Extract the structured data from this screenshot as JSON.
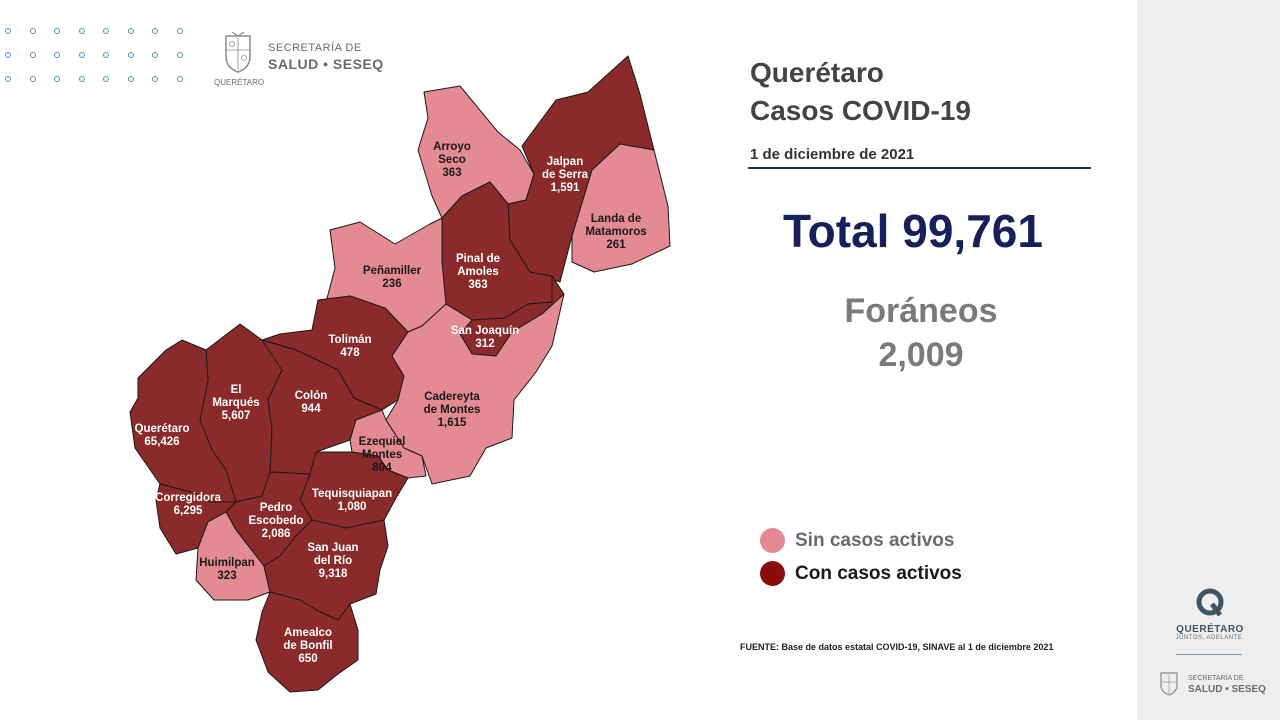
{
  "header": {
    "logo_line1": "SECRETARÍA DE",
    "logo_line2": "SALUD • SESEQ",
    "logo_small": "QUERÉTARO"
  },
  "title": {
    "line1": "Querétaro",
    "line2": "Casos COVID-19",
    "date": "1 de diciembre de 2021"
  },
  "total": "Total 99,761",
  "foraneos": {
    "label": "Foráneos",
    "value": "2,009"
  },
  "legend": {
    "inactive_label": "Sin casos activos",
    "active_label": "Con casos activos"
  },
  "colors": {
    "inactive": "#e38a93",
    "active": "#8b2a2a",
    "legend_active": "#8b0b0b",
    "total_text": "#16205a"
  },
  "municipalities": [
    {
      "id": "arroyo-seco",
      "lines": [
        "Arroyo",
        "Seco"
      ],
      "cases": "363",
      "active": false
    },
    {
      "id": "jalpan-de-serra",
      "lines": [
        "Jalpan",
        "de Serra"
      ],
      "cases": "1,591",
      "active": true
    },
    {
      "id": "landa-de-matamoros",
      "lines": [
        "Landa de",
        "Matamoros"
      ],
      "cases": "261",
      "active": false
    },
    {
      "id": "pinal-de-amoles",
      "lines": [
        "Pinal de",
        "Amoles"
      ],
      "cases": "363",
      "active": true
    },
    {
      "id": "penamiller",
      "lines": [
        "Peñamiller"
      ],
      "cases": "236",
      "active": false
    },
    {
      "id": "san-joaquin",
      "lines": [
        "San Joaquín"
      ],
      "cases": "312",
      "active": true
    },
    {
      "id": "toliman",
      "lines": [
        "Tolimán"
      ],
      "cases": "478",
      "active": true
    },
    {
      "id": "cadereyta-de-montes",
      "lines": [
        "Cadereyta",
        "de Montes"
      ],
      "cases": "1,615",
      "active": false
    },
    {
      "id": "el-marques",
      "lines": [
        "El",
        "Marqués"
      ],
      "cases": "5,607",
      "active": true
    },
    {
      "id": "colon",
      "lines": [
        "Colón"
      ],
      "cases": "944",
      "active": true
    },
    {
      "id": "queretaro",
      "lines": [
        "Querétaro"
      ],
      "cases": "65,426",
      "active": true
    },
    {
      "id": "ezequiel-montes",
      "lines": [
        "Ezequiel",
        "Montes"
      ],
      "cases": "804",
      "active": false
    },
    {
      "id": "tequisquiapan",
      "lines": [
        "Tequisquiapan"
      ],
      "cases": "1,080",
      "active": true
    },
    {
      "id": "corregidora",
      "lines": [
        "Corregidora"
      ],
      "cases": "6,295",
      "active": true
    },
    {
      "id": "pedro-escobedo",
      "lines": [
        "Pedro",
        "Escobedo"
      ],
      "cases": "2,086",
      "active": true
    },
    {
      "id": "huimilpan",
      "lines": [
        "Huimilpan"
      ],
      "cases": "323",
      "active": false
    },
    {
      "id": "san-juan-del-rio",
      "lines": [
        "San Juan",
        "del Río"
      ],
      "cases": "9,318",
      "active": true
    },
    {
      "id": "amealco-de-bonfil",
      "lines": [
        "Amealco",
        "de Bonfil"
      ],
      "cases": "650",
      "active": true
    }
  ],
  "source": "FUENTE: Base de datos estatal COVID-19, SINAVE  al 1 de diciembre 2021",
  "sidebar": {
    "brand": "QUERÉTARO",
    "slogan": "JUNTOS, ADELANTE.",
    "sec_line1": "SECRETARÍA DE",
    "sec_line2": "SALUD • SESEQ"
  }
}
